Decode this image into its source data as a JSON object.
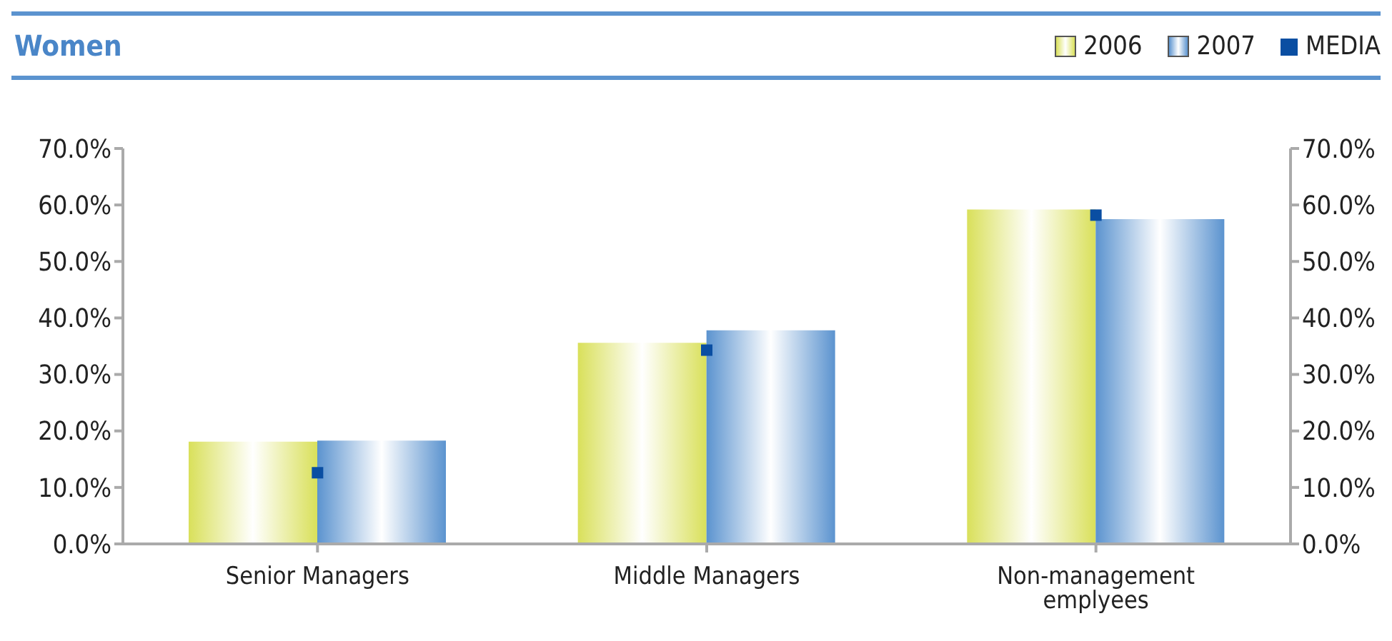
{
  "chart_data": {
    "type": "bar",
    "title": "Women",
    "categories": [
      "Senior Managers",
      "Middle Managers",
      "Non-management emplyees"
    ],
    "series": [
      {
        "name": "2006",
        "color": "#d9e05a",
        "values": [
          18.1,
          35.6,
          59.2
        ]
      },
      {
        "name": "2007",
        "color": "#5b93cf",
        "values": [
          18.3,
          37.8,
          57.5
        ]
      },
      {
        "name": "MEDIA",
        "type": "scatter",
        "marker": "square",
        "color": "#0a4ea2",
        "values": [
          12.6,
          34.3,
          58.2
        ]
      }
    ],
    "ylim": [
      0,
      70
    ],
    "yticks": [
      {
        "value": 0,
        "label": "0.0%"
      },
      {
        "value": 10,
        "label": "10.0%"
      },
      {
        "value": 20,
        "label": "20.0%"
      },
      {
        "value": 30,
        "label": "30.0%"
      },
      {
        "value": 40,
        "label": "40.0%"
      },
      {
        "value": 50,
        "label": "50.0%"
      },
      {
        "value": 60,
        "label": "60.0%"
      },
      {
        "value": 70,
        "label": "70.0%"
      }
    ],
    "y2lim": [
      0,
      70
    ],
    "y2ticks": [
      {
        "value": 0,
        "label": "0.0%"
      },
      {
        "value": 10,
        "label": "10.0%"
      },
      {
        "value": 20,
        "label": "20.0%"
      },
      {
        "value": 30,
        "label": "30.0%"
      },
      {
        "value": 40,
        "label": "40.0%"
      },
      {
        "value": 50,
        "label": "50.0%"
      },
      {
        "value": 60,
        "label": "60.0%"
      },
      {
        "value": 70,
        "label": "70.0%"
      }
    ],
    "grid": false,
    "legend": "top right"
  }
}
